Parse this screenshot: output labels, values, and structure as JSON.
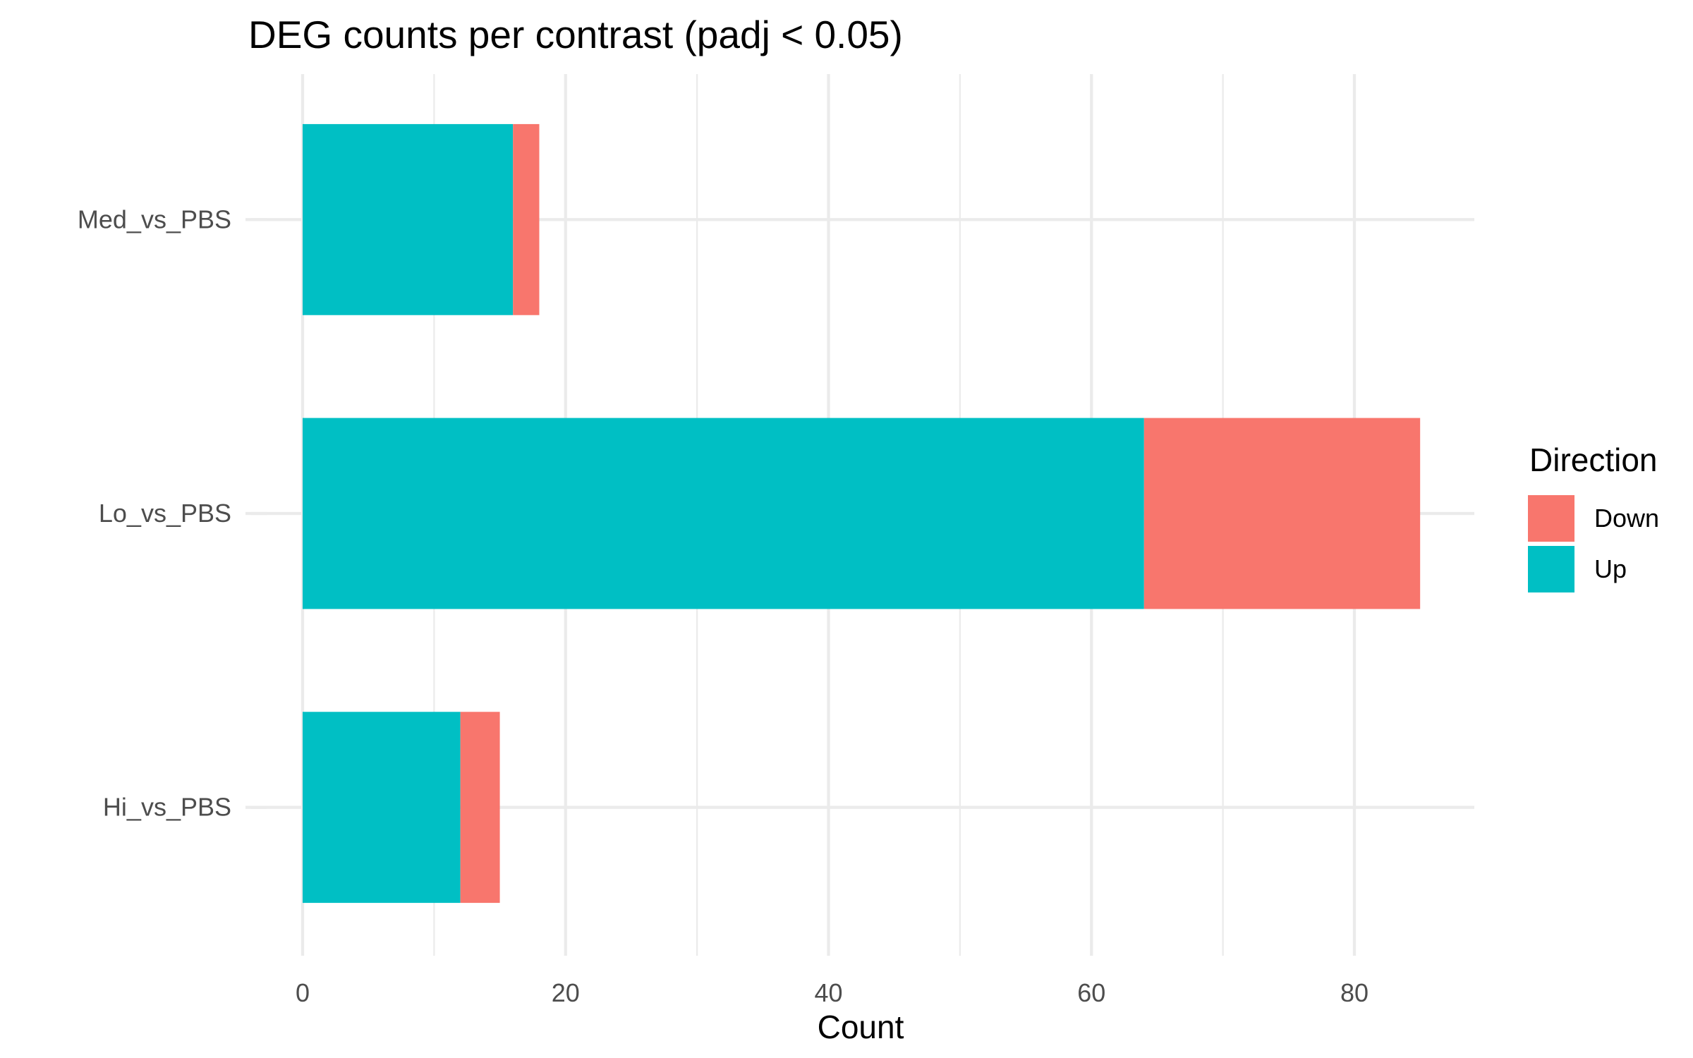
{
  "chart_data": {
    "type": "bar",
    "orientation": "horizontal",
    "stacked": true,
    "title": "DEG counts per contrast (padj < 0.05)",
    "xlabel": "Count",
    "ylabel": "",
    "categories": [
      "Med_vs_PBS",
      "Lo_vs_PBS",
      "Hi_vs_PBS"
    ],
    "series": [
      {
        "name": "Up",
        "color": "#00BFC4",
        "values": [
          16,
          64,
          12
        ]
      },
      {
        "name": "Down",
        "color": "#F8766D",
        "values": [
          2,
          21,
          3
        ]
      }
    ],
    "xlim": [
      0,
      89
    ],
    "x_ticks": [
      "0",
      "20",
      "40",
      "60",
      "80"
    ],
    "grid": true,
    "legend": {
      "title": "Direction",
      "placement": "right",
      "items": [
        {
          "label": "Down",
          "color": "#F8766D"
        },
        {
          "label": "Up",
          "color": "#00BFC4"
        }
      ]
    }
  }
}
